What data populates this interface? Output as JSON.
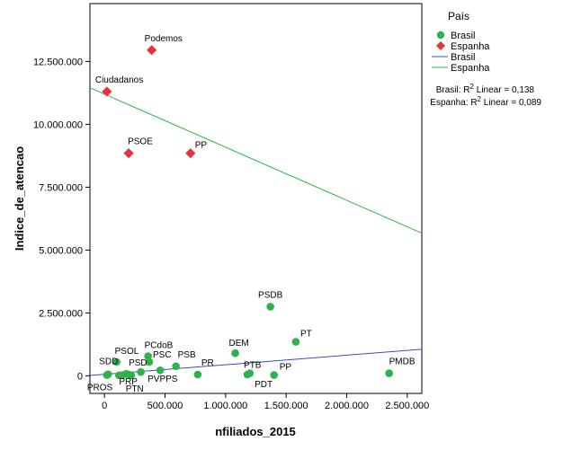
{
  "chart_data": {
    "type": "scatter",
    "xlabel": "nfiliados_2015",
    "ylabel": "Indice_de_atencao",
    "xlim": [
      -120000,
      2620000
    ],
    "ylim": [
      -700000,
      14800000
    ],
    "xticks": [
      0,
      500000,
      1000000,
      1500000,
      2000000,
      2500000
    ],
    "xtick_labels": [
      "0",
      "500.000",
      "1.000.000",
      "1.500.000",
      "2.000.000",
      "2.500.000"
    ],
    "yticks": [
      0,
      2500000,
      5000000,
      7500000,
      10000000,
      12500000
    ],
    "ytick_labels": [
      "0",
      "2.500.000",
      "5.000.000",
      "7.500.000",
      "10.000.000",
      "12.500.000"
    ],
    "legend": {
      "title": "País",
      "position": "top-right",
      "entries": [
        {
          "label": "Brasil",
          "kind": "marker"
        },
        {
          "label": "Espanha",
          "kind": "marker"
        },
        {
          "label": "Brasil",
          "kind": "line"
        },
        {
          "label": "Espanha",
          "kind": "line"
        }
      ]
    },
    "fit_stats": [
      {
        "prefix": "Brasil: R",
        "sup": "2",
        "suffix": " Linear = 0,138"
      },
      {
        "prefix": "Espanha: R",
        "sup": "2",
        "suffix": " Linear = 0,089"
      }
    ],
    "series": [
      {
        "name": "Brasil",
        "marker": "circle",
        "color": "#2db34a",
        "fit_color": "#3b4cc0",
        "fit": {
          "intercept": 60000,
          "slope": 0.38
        },
        "points": [
          {
            "x": 1370000,
            "y": 2750000,
            "label": "PSDB"
          },
          {
            "x": 1580000,
            "y": 1350000,
            "label": "PT"
          },
          {
            "x": 1080000,
            "y": 900000,
            "label": "DEM"
          },
          {
            "x": 2350000,
            "y": 100000,
            "label": "PMDB"
          },
          {
            "x": 770000,
            "y": 50000,
            "label": "PR"
          },
          {
            "x": 1400000,
            "y": 30000,
            "label": "PP"
          },
          {
            "x": 1200000,
            "y": 100000,
            "label": "PTB"
          },
          {
            "x": 1180000,
            "y": 50000,
            "label": "PDT"
          },
          {
            "x": 590000,
            "y": 380000,
            "label": "PSB"
          },
          {
            "x": 460000,
            "y": 220000,
            "label": "PVPPS"
          },
          {
            "x": 360000,
            "y": 780000,
            "label": "PCdoB"
          },
          {
            "x": 370000,
            "y": 550000,
            "label": "PSC"
          },
          {
            "x": 100000,
            "y": 550000,
            "label": "PSOL"
          },
          {
            "x": 300000,
            "y": 150000,
            "label": ""
          },
          {
            "x": 200000,
            "y": 50000,
            "label": "PSD"
          },
          {
            "x": 30000,
            "y": 60000,
            "label": "SDD"
          },
          {
            "x": 180000,
            "y": 80000,
            "label": "PRP"
          },
          {
            "x": 120000,
            "y": 20000,
            "label": ""
          },
          {
            "x": 150000,
            "y": 30000,
            "label": ""
          },
          {
            "x": 20000,
            "y": 30000,
            "label": "PROS"
          },
          {
            "x": 220000,
            "y": 20000,
            "label": "PTN"
          }
        ]
      },
      {
        "name": "Espanha",
        "marker": "diamond",
        "color": "#e8313d",
        "fit_color": "#2db34a",
        "fit": {
          "intercept": 11200000,
          "slope": -2.11
        },
        "points": [
          {
            "x": 390000,
            "y": 12950000,
            "label": "Podemos"
          },
          {
            "x": 20000,
            "y": 11300000,
            "label": "Ciudadanos"
          },
          {
            "x": 200000,
            "y": 8850000,
            "label": "PSOE"
          },
          {
            "x": 710000,
            "y": 8850000,
            "label": "PP"
          }
        ]
      }
    ]
  }
}
